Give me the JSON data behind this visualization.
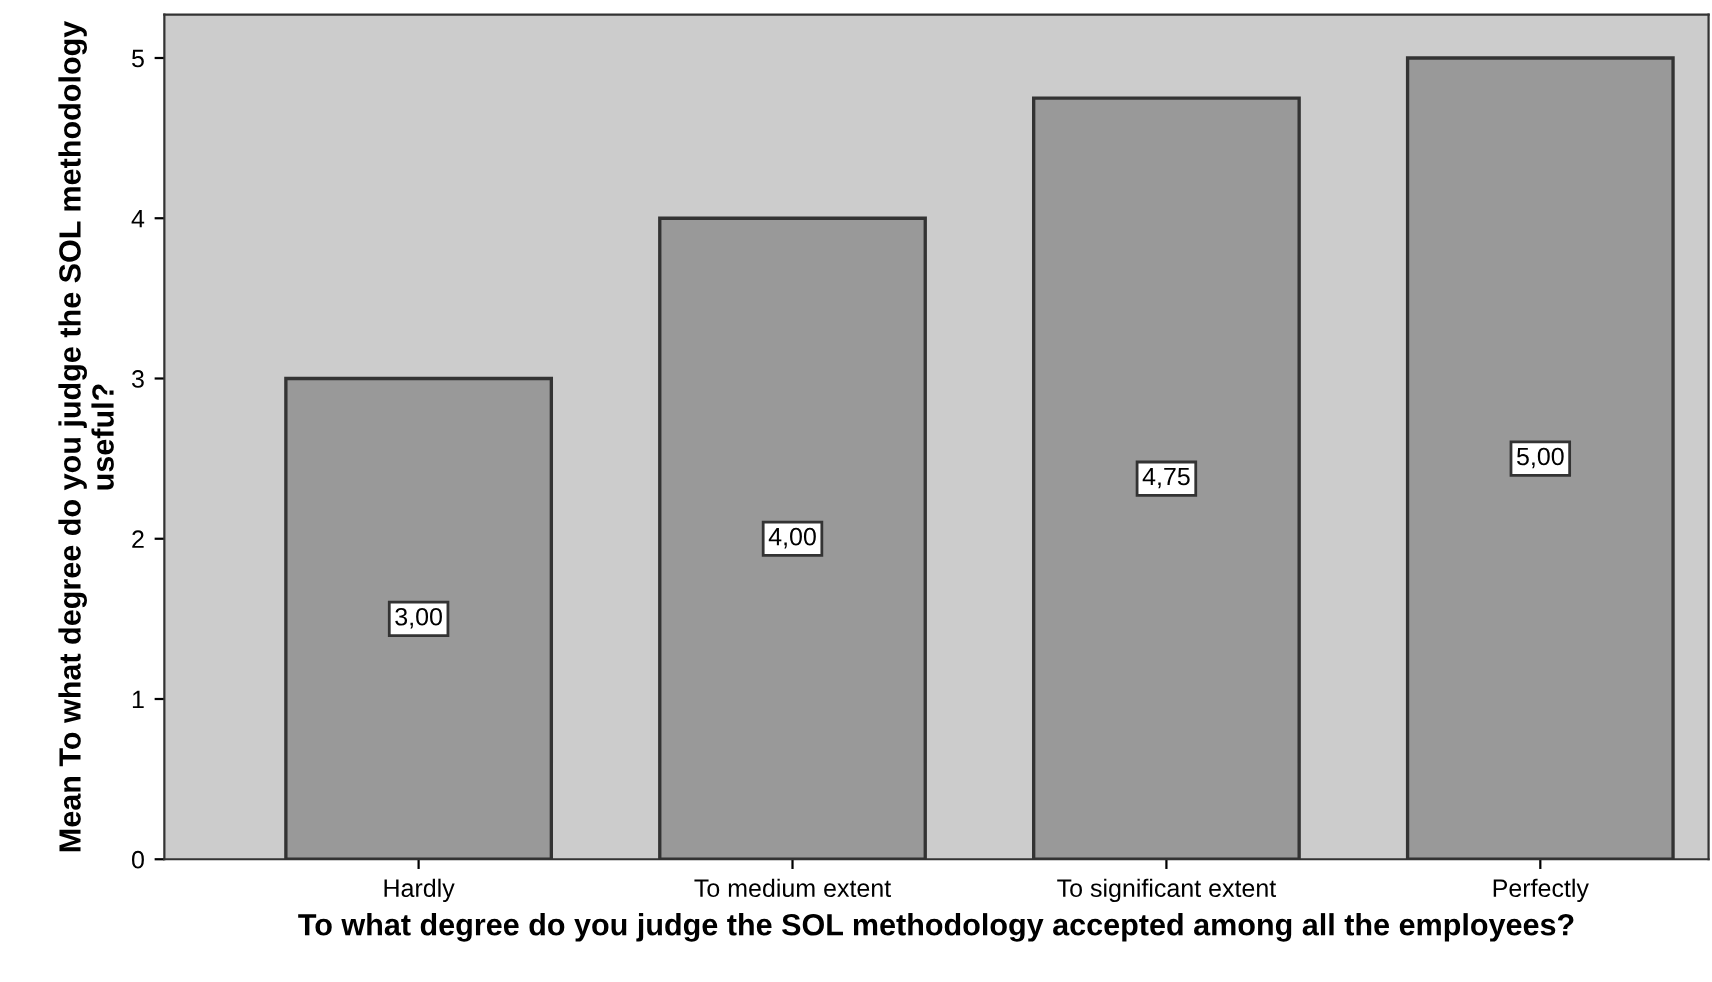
{
  "chart_data": {
    "type": "bar",
    "xlabel": "To what degree do you judge the SOL methodology accepted among all the employees?",
    "ylabel": "Mean To what degree do you judge the SOL methodology useful?",
    "categories": [
      "Hardly",
      "To medium extent",
      "To significant extent",
      "Perfectly"
    ],
    "values": [
      3.0,
      4.0,
      4.75,
      5.0
    ],
    "value_labels": [
      "3,00",
      "4,00",
      "4,75",
      "5,00"
    ],
    "color": "#999999",
    "ylim": [
      0,
      5.27
    ],
    "yticks": [
      0,
      1,
      2,
      3,
      4,
      5
    ],
    "grid": false,
    "legend": false
  }
}
